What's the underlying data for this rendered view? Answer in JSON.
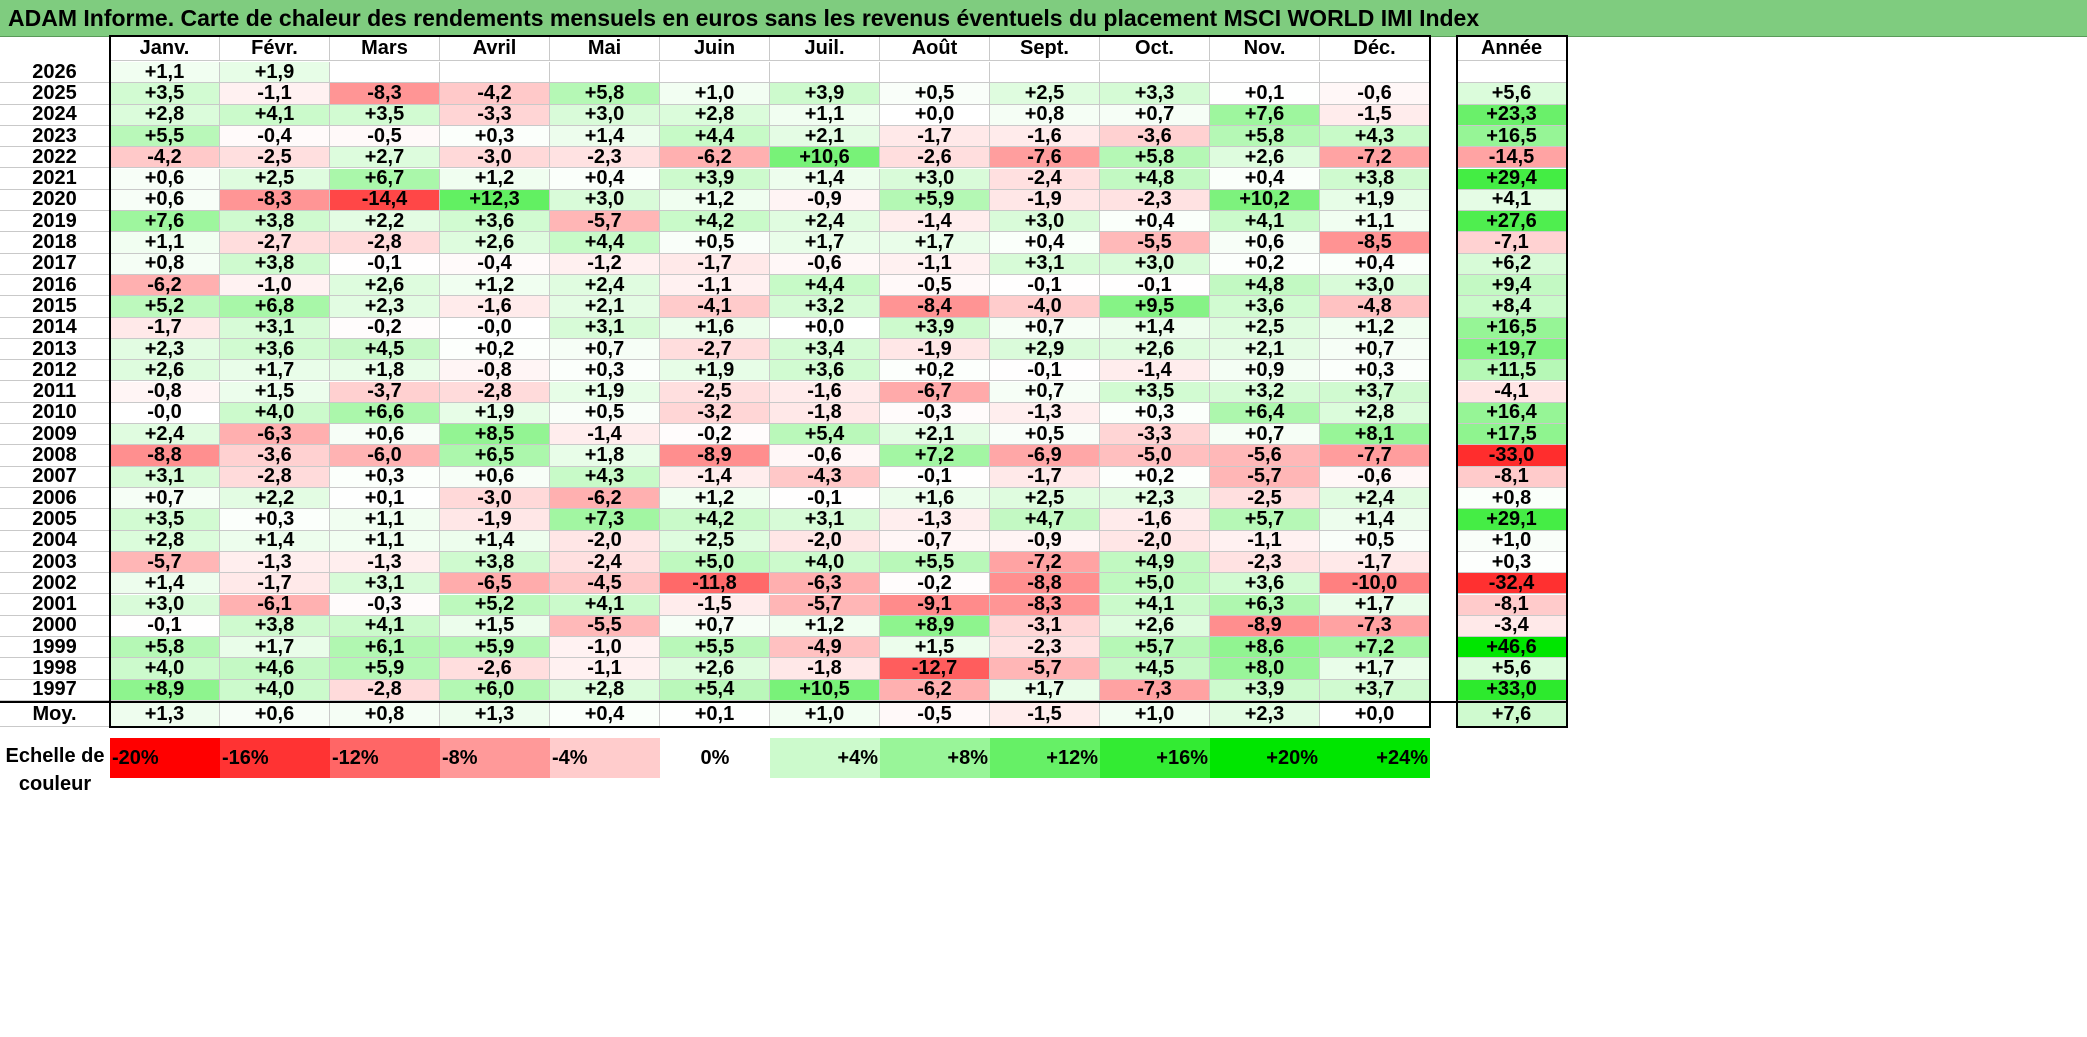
{
  "title": "ADAM Informe. Carte de chaleur des rendements mensuels en euros sans les revenus éventuels du placement MSCI WORLD IMI Index",
  "chart_data": {
    "type": "heatmap",
    "title": "ADAM Informe. Carte de chaleur des rendements mensuels en euros sans les revenus éventuels du placement MSCI WORLD IMI Index",
    "months": [
      "Janv.",
      "Févr.",
      "Mars",
      "Avril",
      "Mai",
      "Juin",
      "Juil.",
      "Août",
      "Sept.",
      "Oct.",
      "Nov.",
      "Déc."
    ],
    "year_header": "Année",
    "rows": [
      {
        "year": "2026",
        "m": [
          "+1,1",
          "+1,9",
          "",
          "",
          "",
          "",
          "",
          "",
          "",
          "",
          "",
          ""
        ],
        "annual": ""
      },
      {
        "year": "2025",
        "m": [
          "+3,5",
          "-1,1",
          "-8,3",
          "-4,2",
          "+5,8",
          "+1,0",
          "+3,9",
          "+0,5",
          "+2,5",
          "+3,3",
          "+0,1",
          "-0,6"
        ],
        "annual": "+5,6"
      },
      {
        "year": "2024",
        "m": [
          "+2,8",
          "+4,1",
          "+3,5",
          "-3,3",
          "+3,0",
          "+2,8",
          "+1,1",
          "+0,0",
          "+0,8",
          "+0,7",
          "+7,6",
          "-1,5"
        ],
        "annual": "+23,3"
      },
      {
        "year": "2023",
        "m": [
          "+5,5",
          "-0,4",
          "-0,5",
          "+0,3",
          "+1,4",
          "+4,4",
          "+2,1",
          "-1,7",
          "-1,6",
          "-3,6",
          "+5,8",
          "+4,3"
        ],
        "annual": "+16,5"
      },
      {
        "year": "2022",
        "m": [
          "-4,2",
          "-2,5",
          "+2,7",
          "-3,0",
          "-2,3",
          "-6,2",
          "+10,6",
          "-2,6",
          "-7,6",
          "+5,8",
          "+2,6",
          "-7,2"
        ],
        "annual": "-14,5"
      },
      {
        "year": "2021",
        "m": [
          "+0,6",
          "+2,5",
          "+6,7",
          "+1,2",
          "+0,4",
          "+3,9",
          "+1,4",
          "+3,0",
          "-2,4",
          "+4,8",
          "+0,4",
          "+3,8"
        ],
        "annual": "+29,4"
      },
      {
        "year": "2020",
        "m": [
          "+0,6",
          "-8,3",
          "-14,4",
          "+12,3",
          "+3,0",
          "+1,2",
          "-0,9",
          "+5,9",
          "-1,9",
          "-2,3",
          "+10,2",
          "+1,9"
        ],
        "annual": "+4,1"
      },
      {
        "year": "2019",
        "m": [
          "+7,6",
          "+3,8",
          "+2,2",
          "+3,6",
          "-5,7",
          "+4,2",
          "+2,4",
          "-1,4",
          "+3,0",
          "+0,4",
          "+4,1",
          "+1,1"
        ],
        "annual": "+27,6"
      },
      {
        "year": "2018",
        "m": [
          "+1,1",
          "-2,7",
          "-2,8",
          "+2,6",
          "+4,4",
          "+0,5",
          "+1,7",
          "+1,7",
          "+0,4",
          "-5,5",
          "+0,6",
          "-8,5"
        ],
        "annual": "-7,1"
      },
      {
        "year": "2017",
        "m": [
          "+0,8",
          "+3,8",
          "-0,1",
          "-0,4",
          "-1,2",
          "-1,7",
          "-0,6",
          "-1,1",
          "+3,1",
          "+3,0",
          "+0,2",
          "+0,4"
        ],
        "annual": "+6,2"
      },
      {
        "year": "2016",
        "m": [
          "-6,2",
          "-1,0",
          "+2,6",
          "+1,2",
          "+2,4",
          "-1,1",
          "+4,4",
          "-0,5",
          "-0,1",
          "-0,1",
          "+4,8",
          "+3,0"
        ],
        "annual": "+9,4"
      },
      {
        "year": "2015",
        "m": [
          "+5,2",
          "+6,8",
          "+2,3",
          "-1,6",
          "+2,1",
          "-4,1",
          "+3,2",
          "-8,4",
          "-4,0",
          "+9,5",
          "+3,6",
          "-4,8"
        ],
        "annual": "+8,4"
      },
      {
        "year": "2014",
        "m": [
          "-1,7",
          "+3,1",
          "-0,2",
          "-0,0",
          "+3,1",
          "+1,6",
          "+0,0",
          "+3,9",
          "+0,7",
          "+1,4",
          "+2,5",
          "+1,2"
        ],
        "annual": "+16,5"
      },
      {
        "year": "2013",
        "m": [
          "+2,3",
          "+3,6",
          "+4,5",
          "+0,2",
          "+0,7",
          "-2,7",
          "+3,4",
          "-1,9",
          "+2,9",
          "+2,6",
          "+2,1",
          "+0,7"
        ],
        "annual": "+19,7"
      },
      {
        "year": "2012",
        "m": [
          "+2,6",
          "+1,7",
          "+1,8",
          "-0,8",
          "+0,3",
          "+1,9",
          "+3,6",
          "+0,2",
          "-0,1",
          "-1,4",
          "+0,9",
          "+0,3"
        ],
        "annual": "+11,5"
      },
      {
        "year": "2011",
        "m": [
          "-0,8",
          "+1,5",
          "-3,7",
          "-2,8",
          "+1,9",
          "-2,5",
          "-1,6",
          "-6,7",
          "+0,7",
          "+3,5",
          "+3,2",
          "+3,7"
        ],
        "annual": "-4,1"
      },
      {
        "year": "2010",
        "m": [
          "-0,0",
          "+4,0",
          "+6,6",
          "+1,9",
          "+0,5",
          "-3,2",
          "-1,8",
          "-0,3",
          "-1,3",
          "+0,3",
          "+6,4",
          "+2,8"
        ],
        "annual": "+16,4"
      },
      {
        "year": "2009",
        "m": [
          "+2,4",
          "-6,3",
          "+0,6",
          "+8,5",
          "-1,4",
          "-0,2",
          "+5,4",
          "+2,1",
          "+0,5",
          "-3,3",
          "+0,7",
          "+8,1"
        ],
        "annual": "+17,5"
      },
      {
        "year": "2008",
        "m": [
          "-8,8",
          "-3,6",
          "-6,0",
          "+6,5",
          "+1,8",
          "-8,9",
          "-0,6",
          "+7,2",
          "-6,9",
          "-5,0",
          "-5,6",
          "-7,7"
        ],
        "annual": "-33,0"
      },
      {
        "year": "2007",
        "m": [
          "+3,1",
          "-2,8",
          "+0,3",
          "+0,6",
          "+4,3",
          "-1,4",
          "-4,3",
          "-0,1",
          "-1,7",
          "+0,2",
          "-5,7",
          "-0,6"
        ],
        "annual": "-8,1"
      },
      {
        "year": "2006",
        "m": [
          "+0,7",
          "+2,2",
          "+0,1",
          "-3,0",
          "-6,2",
          "+1,2",
          "-0,1",
          "+1,6",
          "+2,5",
          "+2,3",
          "-2,5",
          "+2,4"
        ],
        "annual": "+0,8"
      },
      {
        "year": "2005",
        "m": [
          "+3,5",
          "+0,3",
          "+1,1",
          "-1,9",
          "+7,3",
          "+4,2",
          "+3,1",
          "-1,3",
          "+4,7",
          "-1,6",
          "+5,7",
          "+1,4"
        ],
        "annual": "+29,1"
      },
      {
        "year": "2004",
        "m": [
          "+2,8",
          "+1,4",
          "+1,1",
          "+1,4",
          "-2,0",
          "+2,5",
          "-2,0",
          "-0,7",
          "-0,9",
          "-2,0",
          "-1,1",
          "+0,5"
        ],
        "annual": "+1,0"
      },
      {
        "year": "2003",
        "m": [
          "-5,7",
          "-1,3",
          "-1,3",
          "+3,8",
          "-2,4",
          "+5,0",
          "+4,0",
          "+5,5",
          "-7,2",
          "+4,9",
          "-2,3",
          "-1,7"
        ],
        "annual": "+0,3"
      },
      {
        "year": "2002",
        "m": [
          "+1,4",
          "-1,7",
          "+3,1",
          "-6,5",
          "-4,5",
          "-11,8",
          "-6,3",
          "-0,2",
          "-8,8",
          "+5,0",
          "+3,6",
          "-10,0"
        ],
        "annual": "-32,4"
      },
      {
        "year": "2001",
        "m": [
          "+3,0",
          "-6,1",
          "-0,3",
          "+5,2",
          "+4,1",
          "-1,5",
          "-5,7",
          "-9,1",
          "-8,3",
          "+4,1",
          "+6,3",
          "+1,7"
        ],
        "annual": "-8,1"
      },
      {
        "year": "2000",
        "m": [
          "-0,1",
          "+3,8",
          "+4,1",
          "+1,5",
          "-5,5",
          "+0,7",
          "+1,2",
          "+8,9",
          "-3,1",
          "+2,6",
          "-8,9",
          "-7,3"
        ],
        "annual": "-3,4"
      },
      {
        "year": "1999",
        "m": [
          "+5,8",
          "+1,7",
          "+6,1",
          "+5,9",
          "-1,0",
          "+5,5",
          "-4,9",
          "+1,5",
          "-2,3",
          "+5,7",
          "+8,6",
          "+7,2"
        ],
        "annual": "+46,6"
      },
      {
        "year": "1998",
        "m": [
          "+4,0",
          "+4,6",
          "+5,9",
          "-2,6",
          "-1,1",
          "+2,6",
          "-1,8",
          "-12,7",
          "-5,7",
          "+4,5",
          "+8,0",
          "+1,7"
        ],
        "annual": "+5,6"
      },
      {
        "year": "1997",
        "m": [
          "+8,9",
          "+4,0",
          "-2,8",
          "+6,0",
          "+2,8",
          "+5,4",
          "+10,5",
          "-6,2",
          "+1,7",
          "-7,3",
          "+3,9",
          "+3,7"
        ],
        "annual": "+33,0"
      }
    ],
    "average": {
      "label": "Moy.",
      "m": [
        "+1,3",
        "+0,6",
        "+0,8",
        "+1,3",
        "+0,4",
        "+0,1",
        "+1,0",
        "-0,5",
        "-1,5",
        "+1,0",
        "+2,3",
        "+0,0"
      ],
      "annual": "+7,6"
    },
    "color_scale": {
      "label": "Echelle de couleur",
      "stops": [
        "-20%",
        "-16%",
        "-12%",
        "-8%",
        "-4%",
        "0%",
        "+4%",
        "+8%",
        "+12%",
        "+16%",
        "+20%",
        "+24%"
      ],
      "neg_color": "#ff0000",
      "zero_color": "#ffffff",
      "pos_color": "#00e600"
    }
  }
}
